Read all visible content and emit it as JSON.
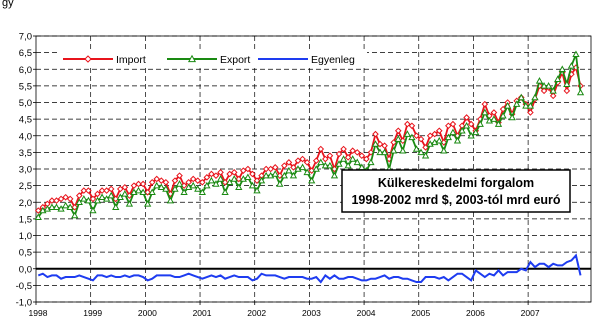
{
  "corner_text": "gy",
  "chart_data": {
    "type": "line",
    "title_line1": "Külkereskedelmi forgalom",
    "title_line2": "1998-2002 mrd $, 2003-tól mrd euró",
    "ylim": [
      -1.0,
      7.0
    ],
    "y_ticks": [
      "7,0",
      "6,5",
      "6,0",
      "5,5",
      "5,0",
      "4,5",
      "4,0",
      "3,5",
      "3,0",
      "2,5",
      "2,0",
      "1,5",
      "1,0",
      "0,5",
      "0,0",
      "-0,5",
      "-1,0"
    ],
    "y_tick_values": [
      7.0,
      6.5,
      6.0,
      5.5,
      5.0,
      4.5,
      4.0,
      3.5,
      3.0,
      2.5,
      2.0,
      1.5,
      1.0,
      0.5,
      0.0,
      -0.5,
      -1.0
    ],
    "x_ticks": [
      "1998",
      "1999",
      "2000",
      "2001",
      "2002",
      "2003",
      "2004",
      "2005",
      "2006",
      "2007"
    ],
    "grid": true,
    "legend_position": "top-left",
    "series": [
      {
        "name": "Import",
        "color": "#e8141c",
        "marker": "diamond",
        "values": [
          1.75,
          1.85,
          1.95,
          2.05,
          2.05,
          2.1,
          2.15,
          2.1,
          1.85,
          2.2,
          2.35,
          2.35,
          2.1,
          2.25,
          2.35,
          2.35,
          2.4,
          2.1,
          2.4,
          2.45,
          2.2,
          2.5,
          2.55,
          2.55,
          2.3,
          2.6,
          2.7,
          2.65,
          2.6,
          2.25,
          2.65,
          2.8,
          2.5,
          2.6,
          2.7,
          2.65,
          2.6,
          2.75,
          2.85,
          2.8,
          2.9,
          2.6,
          2.85,
          2.9,
          2.7,
          2.95,
          3.0,
          2.85,
          2.65,
          2.8,
          3.0,
          3.0,
          3.05,
          2.8,
          3.1,
          3.2,
          3.05,
          3.25,
          3.3,
          3.2,
          2.95,
          3.25,
          3.6,
          3.3,
          3.4,
          3.0,
          3.45,
          3.6,
          3.35,
          3.55,
          3.5,
          3.4,
          3.3,
          3.5,
          4.05,
          3.75,
          3.7,
          3.3,
          3.8,
          4.15,
          3.85,
          4.35,
          4.3,
          4.0,
          3.9,
          3.65,
          4.0,
          4.05,
          4.15,
          3.8,
          4.3,
          4.35,
          4.0,
          4.3,
          4.55,
          4.35,
          4.15,
          4.5,
          4.95,
          4.6,
          4.7,
          4.4,
          4.8,
          5.0,
          4.65,
          5.05,
          5.15,
          4.95,
          4.7,
          5.1,
          5.5,
          5.35,
          5.45,
          5.2,
          5.6,
          5.9,
          5.35,
          5.85,
          6.05,
          5.5
        ]
      },
      {
        "name": "Export",
        "color": "#1a8a12",
        "marker": "triangle",
        "values": [
          1.55,
          1.75,
          1.8,
          1.85,
          1.85,
          1.8,
          1.9,
          1.85,
          1.6,
          2.0,
          2.1,
          2.05,
          1.75,
          2.05,
          2.15,
          2.1,
          2.2,
          1.85,
          2.15,
          2.25,
          1.95,
          2.3,
          2.35,
          2.3,
          1.95,
          2.3,
          2.5,
          2.45,
          2.4,
          2.05,
          2.4,
          2.55,
          2.3,
          2.45,
          2.5,
          2.4,
          2.3,
          2.5,
          2.65,
          2.55,
          2.7,
          2.3,
          2.6,
          2.7,
          2.45,
          2.7,
          2.75,
          2.5,
          2.35,
          2.65,
          2.8,
          2.8,
          2.85,
          2.55,
          2.8,
          2.95,
          2.8,
          3.0,
          3.05,
          2.9,
          2.65,
          3.0,
          3.2,
          3.1,
          3.1,
          2.8,
          3.15,
          3.3,
          3.1,
          3.3,
          3.2,
          3.05,
          2.95,
          3.2,
          3.75,
          3.5,
          3.5,
          3.0,
          3.55,
          3.9,
          3.55,
          4.05,
          3.95,
          3.6,
          3.5,
          3.4,
          3.75,
          3.8,
          3.85,
          3.55,
          3.95,
          4.1,
          3.85,
          4.15,
          4.3,
          4.0,
          4.1,
          4.35,
          4.7,
          4.45,
          4.5,
          4.35,
          4.6,
          4.9,
          4.55,
          4.95,
          5.15,
          4.9,
          4.9,
          5.15,
          5.65,
          5.5,
          5.5,
          5.35,
          5.7,
          6.0,
          5.55,
          6.1,
          6.45,
          5.3
        ]
      },
      {
        "name": "Egyenleg",
        "color": "#1e3cf0",
        "marker": "none",
        "values": [
          -0.2,
          -0.15,
          -0.25,
          -0.2,
          -0.2,
          -0.3,
          -0.25,
          -0.25,
          -0.25,
          -0.2,
          -0.25,
          -0.3,
          -0.35,
          -0.2,
          -0.2,
          -0.25,
          -0.2,
          -0.25,
          -0.25,
          -0.2,
          -0.25,
          -0.2,
          -0.2,
          -0.25,
          -0.35,
          -0.3,
          -0.2,
          -0.2,
          -0.2,
          -0.2,
          -0.25,
          -0.25,
          -0.2,
          -0.15,
          -0.2,
          -0.25,
          -0.3,
          -0.25,
          -0.2,
          -0.25,
          -0.2,
          -0.3,
          -0.25,
          -0.2,
          -0.25,
          -0.25,
          -0.25,
          -0.35,
          -0.3,
          -0.15,
          -0.2,
          -0.2,
          -0.2,
          -0.25,
          -0.3,
          -0.25,
          -0.25,
          -0.25,
          -0.25,
          -0.3,
          -0.3,
          -0.25,
          -0.4,
          -0.2,
          -0.3,
          -0.2,
          -0.3,
          -0.3,
          -0.25,
          -0.25,
          -0.3,
          -0.35,
          -0.35,
          -0.3,
          -0.3,
          -0.25,
          -0.2,
          -0.3,
          -0.25,
          -0.25,
          -0.3,
          -0.3,
          -0.35,
          -0.4,
          -0.4,
          -0.25,
          -0.25,
          -0.25,
          -0.3,
          -0.25,
          -0.35,
          -0.25,
          -0.15,
          -0.15,
          -0.25,
          -0.35,
          -0.05,
          -0.15,
          -0.25,
          -0.15,
          -0.2,
          -0.05,
          -0.2,
          -0.1,
          -0.1,
          -0.1,
          0.0,
          -0.05,
          0.2,
          0.05,
          0.15,
          0.15,
          0.05,
          0.15,
          0.1,
          0.1,
          0.2,
          0.25,
          0.4,
          -0.2
        ]
      }
    ]
  }
}
